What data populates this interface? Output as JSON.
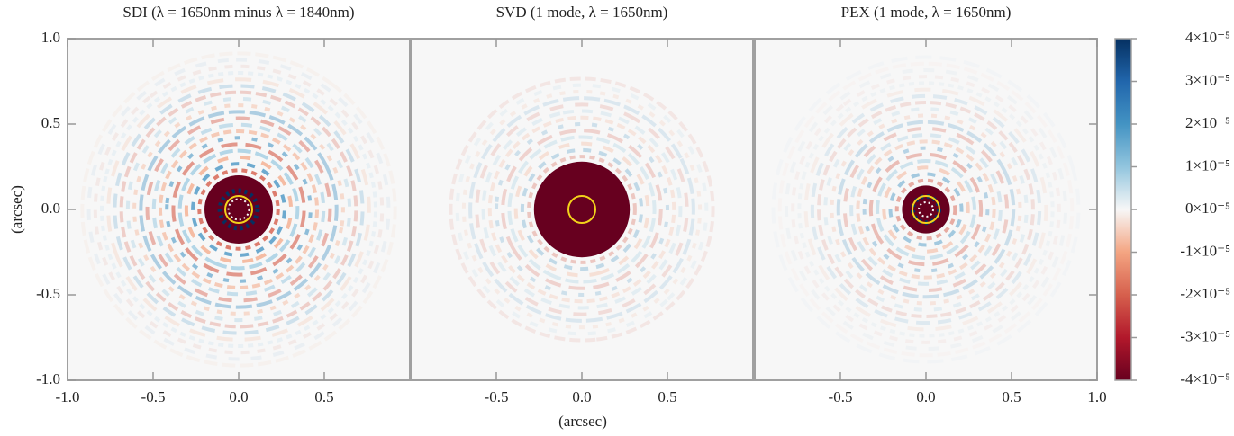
{
  "chart_data": {
    "type": "heatmap",
    "panels": [
      {
        "title": "SDI (λ = 1650nm minus λ = 1840nm)",
        "xticks": [
          {
            "value": -1.0,
            "label": "-1.0"
          },
          {
            "value": -0.5,
            "label": "-0.5"
          },
          {
            "value": 0,
            "label": "0.0"
          },
          {
            "value": 0.5,
            "label": "0.5"
          }
        ]
      },
      {
        "title": "SVD (1 mode, λ = 1650nm)",
        "xticks": [
          {
            "value": -0.5,
            "label": "-0.5"
          },
          {
            "value": 0,
            "label": "0.0"
          },
          {
            "value": 0.5,
            "label": "0.5"
          }
        ]
      },
      {
        "title": "PEX (1 mode, λ = 1650nm)",
        "xticks": [
          {
            "value": -0.5,
            "label": "-0.5"
          },
          {
            "value": 0,
            "label": "0.0"
          },
          {
            "value": 0.5,
            "label": "0.5"
          },
          {
            "value": 1.0,
            "label": "1.0"
          }
        ]
      }
    ],
    "xlabel": "(arcsec)",
    "ylabel": "(arcsec)",
    "xlim": [
      -1.0,
      1.0
    ],
    "ylim": [
      -1.0,
      1.0
    ],
    "yticks": [
      {
        "value": -1.0,
        "label": "-1.0"
      },
      {
        "value": -0.5,
        "label": "-0.5"
      },
      {
        "value": 0,
        "label": "0.0"
      },
      {
        "value": 0.5,
        "label": "0.5"
      },
      {
        "value": 1.0,
        "label": "1.0"
      }
    ],
    "colorbar": {
      "lim": [
        -4e-05,
        4e-05
      ],
      "ticks": [
        {
          "value": 4e-05,
          "label": "4×10⁻⁵"
        },
        {
          "value": 3e-05,
          "label": "3×10⁻⁵"
        },
        {
          "value": 2e-05,
          "label": "2×10⁻⁵"
        },
        {
          "value": 1e-05,
          "label": "1×10⁻⁵"
        },
        {
          "value": 0,
          "label": "0×10⁻⁵"
        },
        {
          "value": -1e-05,
          "label": "-1×10⁻⁵"
        },
        {
          "value": -2e-05,
          "label": "-2×10⁻⁵"
        },
        {
          "value": -3e-05,
          "label": "-3×10⁻⁵"
        },
        {
          "value": -4e-05,
          "label": "-4×10⁻⁵"
        }
      ]
    },
    "colormap": [
      "#053061",
      "#2166ac",
      "#4393c3",
      "#92c5de",
      "#f7f7f7",
      "#f4a582",
      "#d6604d",
      "#b2182b",
      "#67001f"
    ],
    "circle_color": "#f2d21b"
  }
}
